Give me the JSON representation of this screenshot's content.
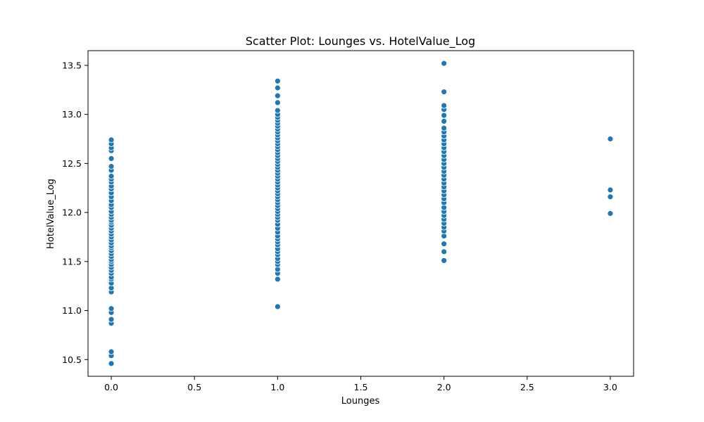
{
  "chart_data": {
    "type": "scatter",
    "title": "Scatter Plot: Lounges vs. HotelValue_Log",
    "xlabel": "Lounges",
    "ylabel": "HotelValue_Log",
    "xlim": [
      -0.14,
      3.14
    ],
    "ylim": [
      10.33,
      13.65
    ],
    "xticks": [
      0.0,
      0.5,
      1.0,
      1.5,
      2.0,
      2.5,
      3.0
    ],
    "xtick_labels": [
      "0.0",
      "0.5",
      "1.0",
      "1.5",
      "2.0",
      "2.5",
      "3.0"
    ],
    "yticks": [
      10.5,
      11.0,
      11.5,
      12.0,
      12.5,
      13.0,
      13.5
    ],
    "ytick_labels": [
      "10.5",
      "11.0",
      "11.5",
      "12.0",
      "12.5",
      "13.0",
      "13.5"
    ],
    "grid": false,
    "point_color": "#1f77b4",
    "points": [
      {
        "x": 0,
        "y": 10.46
      },
      {
        "x": 0,
        "y": 10.54
      },
      {
        "x": 0,
        "y": 10.58
      },
      {
        "x": 0,
        "y": 10.87
      },
      {
        "x": 0,
        "y": 10.91
      },
      {
        "x": 0,
        "y": 10.98
      },
      {
        "x": 0,
        "y": 11.02
      },
      {
        "x": 0,
        "y": 11.19
      },
      {
        "x": 0,
        "y": 11.23
      },
      {
        "x": 0,
        "y": 11.28
      },
      {
        "x": 0,
        "y": 11.32
      },
      {
        "x": 0,
        "y": 11.34
      },
      {
        "x": 0,
        "y": 11.38
      },
      {
        "x": 0,
        "y": 11.41
      },
      {
        "x": 0,
        "y": 11.44
      },
      {
        "x": 0,
        "y": 11.47
      },
      {
        "x": 0,
        "y": 11.5
      },
      {
        "x": 0,
        "y": 11.52
      },
      {
        "x": 0,
        "y": 11.55
      },
      {
        "x": 0,
        "y": 11.58
      },
      {
        "x": 0,
        "y": 11.61
      },
      {
        "x": 0,
        "y": 11.64
      },
      {
        "x": 0,
        "y": 11.66
      },
      {
        "x": 0,
        "y": 11.69
      },
      {
        "x": 0,
        "y": 11.72
      },
      {
        "x": 0,
        "y": 11.75
      },
      {
        "x": 0,
        "y": 11.78
      },
      {
        "x": 0,
        "y": 11.81
      },
      {
        "x": 0,
        "y": 11.84
      },
      {
        "x": 0,
        "y": 11.87
      },
      {
        "x": 0,
        "y": 11.9
      },
      {
        "x": 0,
        "y": 11.92
      },
      {
        "x": 0,
        "y": 11.95
      },
      {
        "x": 0,
        "y": 11.98
      },
      {
        "x": 0,
        "y": 12.01
      },
      {
        "x": 0,
        "y": 12.05
      },
      {
        "x": 0,
        "y": 12.08
      },
      {
        "x": 0,
        "y": 12.12
      },
      {
        "x": 0,
        "y": 12.16
      },
      {
        "x": 0,
        "y": 12.2
      },
      {
        "x": 0,
        "y": 12.24
      },
      {
        "x": 0,
        "y": 12.27
      },
      {
        "x": 0,
        "y": 12.31
      },
      {
        "x": 0,
        "y": 12.34
      },
      {
        "x": 0,
        "y": 12.37
      },
      {
        "x": 0,
        "y": 12.43
      },
      {
        "x": 0,
        "y": 12.47
      },
      {
        "x": 0,
        "y": 12.55
      },
      {
        "x": 0,
        "y": 12.63
      },
      {
        "x": 0,
        "y": 12.66
      },
      {
        "x": 0,
        "y": 12.7
      },
      {
        "x": 0,
        "y": 12.74
      },
      {
        "x": 1,
        "y": 11.04
      },
      {
        "x": 1,
        "y": 11.32
      },
      {
        "x": 1,
        "y": 11.38
      },
      {
        "x": 1,
        "y": 11.42
      },
      {
        "x": 1,
        "y": 11.47
      },
      {
        "x": 1,
        "y": 11.5
      },
      {
        "x": 1,
        "y": 11.53
      },
      {
        "x": 1,
        "y": 11.57
      },
      {
        "x": 1,
        "y": 11.6
      },
      {
        "x": 1,
        "y": 11.63
      },
      {
        "x": 1,
        "y": 11.67
      },
      {
        "x": 1,
        "y": 11.7
      },
      {
        "x": 1,
        "y": 11.73
      },
      {
        "x": 1,
        "y": 11.76
      },
      {
        "x": 1,
        "y": 11.8
      },
      {
        "x": 1,
        "y": 11.84
      },
      {
        "x": 1,
        "y": 11.88
      },
      {
        "x": 1,
        "y": 11.92
      },
      {
        "x": 1,
        "y": 11.95
      },
      {
        "x": 1,
        "y": 11.98
      },
      {
        "x": 1,
        "y": 12.01
      },
      {
        "x": 1,
        "y": 12.04
      },
      {
        "x": 1,
        "y": 12.07
      },
      {
        "x": 1,
        "y": 12.1
      },
      {
        "x": 1,
        "y": 12.13
      },
      {
        "x": 1,
        "y": 12.16
      },
      {
        "x": 1,
        "y": 12.19
      },
      {
        "x": 1,
        "y": 12.22
      },
      {
        "x": 1,
        "y": 12.25
      },
      {
        "x": 1,
        "y": 12.28
      },
      {
        "x": 1,
        "y": 12.31
      },
      {
        "x": 1,
        "y": 12.34
      },
      {
        "x": 1,
        "y": 12.37
      },
      {
        "x": 1,
        "y": 12.4
      },
      {
        "x": 1,
        "y": 12.43
      },
      {
        "x": 1,
        "y": 12.46
      },
      {
        "x": 1,
        "y": 12.49
      },
      {
        "x": 1,
        "y": 12.52
      },
      {
        "x": 1,
        "y": 12.55
      },
      {
        "x": 1,
        "y": 12.58
      },
      {
        "x": 1,
        "y": 12.61
      },
      {
        "x": 1,
        "y": 12.64
      },
      {
        "x": 1,
        "y": 12.67
      },
      {
        "x": 1,
        "y": 12.7
      },
      {
        "x": 1,
        "y": 12.73
      },
      {
        "x": 1,
        "y": 12.76
      },
      {
        "x": 1,
        "y": 12.79
      },
      {
        "x": 1,
        "y": 12.82
      },
      {
        "x": 1,
        "y": 12.85
      },
      {
        "x": 1,
        "y": 12.88
      },
      {
        "x": 1,
        "y": 12.91
      },
      {
        "x": 1,
        "y": 12.94
      },
      {
        "x": 1,
        "y": 12.97
      },
      {
        "x": 1,
        "y": 13.0
      },
      {
        "x": 1,
        "y": 13.04
      },
      {
        "x": 1,
        "y": 13.12
      },
      {
        "x": 1,
        "y": 13.19
      },
      {
        "x": 1,
        "y": 13.27
      },
      {
        "x": 1,
        "y": 13.34
      },
      {
        "x": 2,
        "y": 11.51
      },
      {
        "x": 2,
        "y": 11.6
      },
      {
        "x": 2,
        "y": 11.68
      },
      {
        "x": 2,
        "y": 11.76
      },
      {
        "x": 2,
        "y": 11.81
      },
      {
        "x": 2,
        "y": 11.85
      },
      {
        "x": 2,
        "y": 11.89
      },
      {
        "x": 2,
        "y": 11.93
      },
      {
        "x": 2,
        "y": 11.97
      },
      {
        "x": 2,
        "y": 12.01
      },
      {
        "x": 2,
        "y": 12.05
      },
      {
        "x": 2,
        "y": 12.1
      },
      {
        "x": 2,
        "y": 12.14
      },
      {
        "x": 2,
        "y": 12.18
      },
      {
        "x": 2,
        "y": 12.22
      },
      {
        "x": 2,
        "y": 12.26
      },
      {
        "x": 2,
        "y": 12.3
      },
      {
        "x": 2,
        "y": 12.34
      },
      {
        "x": 2,
        "y": 12.38
      },
      {
        "x": 2,
        "y": 12.42
      },
      {
        "x": 2,
        "y": 12.46
      },
      {
        "x": 2,
        "y": 12.5
      },
      {
        "x": 2,
        "y": 12.54
      },
      {
        "x": 2,
        "y": 12.58
      },
      {
        "x": 2,
        "y": 12.62
      },
      {
        "x": 2,
        "y": 12.66
      },
      {
        "x": 2,
        "y": 12.7
      },
      {
        "x": 2,
        "y": 12.74
      },
      {
        "x": 2,
        "y": 12.78
      },
      {
        "x": 2,
        "y": 12.82
      },
      {
        "x": 2,
        "y": 12.86
      },
      {
        "x": 2,
        "y": 12.93
      },
      {
        "x": 2,
        "y": 12.99
      },
      {
        "x": 2,
        "y": 13.05
      },
      {
        "x": 2,
        "y": 13.09
      },
      {
        "x": 2,
        "y": 13.23
      },
      {
        "x": 2,
        "y": 13.52
      },
      {
        "x": 3,
        "y": 11.99
      },
      {
        "x": 3,
        "y": 12.16
      },
      {
        "x": 3,
        "y": 12.23
      },
      {
        "x": 3,
        "y": 12.75
      }
    ]
  }
}
